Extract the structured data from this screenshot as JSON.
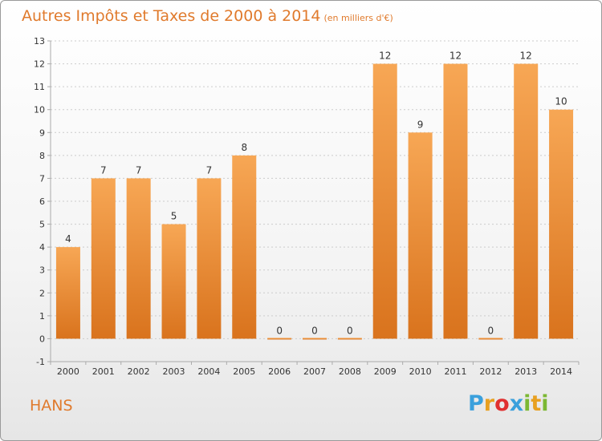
{
  "header": {
    "title": "Autres Impôts et Taxes de 2000 à 2014",
    "unit": "(en milliers d'€)"
  },
  "footer": {
    "place": "HANS",
    "logo_letters": [
      "P",
      "r",
      "o",
      "x",
      "i",
      "t",
      "i"
    ],
    "logo_colors": [
      "#3aa0dc",
      "#e8a020",
      "#e03030",
      "#3aa0dc",
      "#7cb833",
      "#e8a020",
      "#7cb833"
    ]
  },
  "colors": {
    "bar_top": "#f7a755",
    "bar_bottom": "#d9731d",
    "axis": "#aaaaaa",
    "grid": "#cccccc",
    "text": "#333333"
  },
  "chart_data": {
    "type": "bar",
    "categories": [
      "2000",
      "2001",
      "2002",
      "2003",
      "2004",
      "2005",
      "2006",
      "2007",
      "2008",
      "2009",
      "2010",
      "2011",
      "2012",
      "2013",
      "2014"
    ],
    "values": [
      4,
      7,
      7,
      5,
      7,
      8,
      0,
      0,
      0,
      12,
      9,
      12,
      0,
      12,
      10
    ],
    "data_labels": [
      "4",
      "7",
      "7",
      "5",
      "7",
      "8",
      "0",
      "0",
      "0",
      "12",
      "9",
      "12",
      "0",
      "12",
      "10"
    ],
    "yticks": [
      "-1",
      "0",
      "1",
      "2",
      "3",
      "4",
      "5",
      "6",
      "7",
      "8",
      "9",
      "10",
      "11",
      "12",
      "13"
    ],
    "ylim": [
      -1,
      13
    ],
    "grid": true
  }
}
